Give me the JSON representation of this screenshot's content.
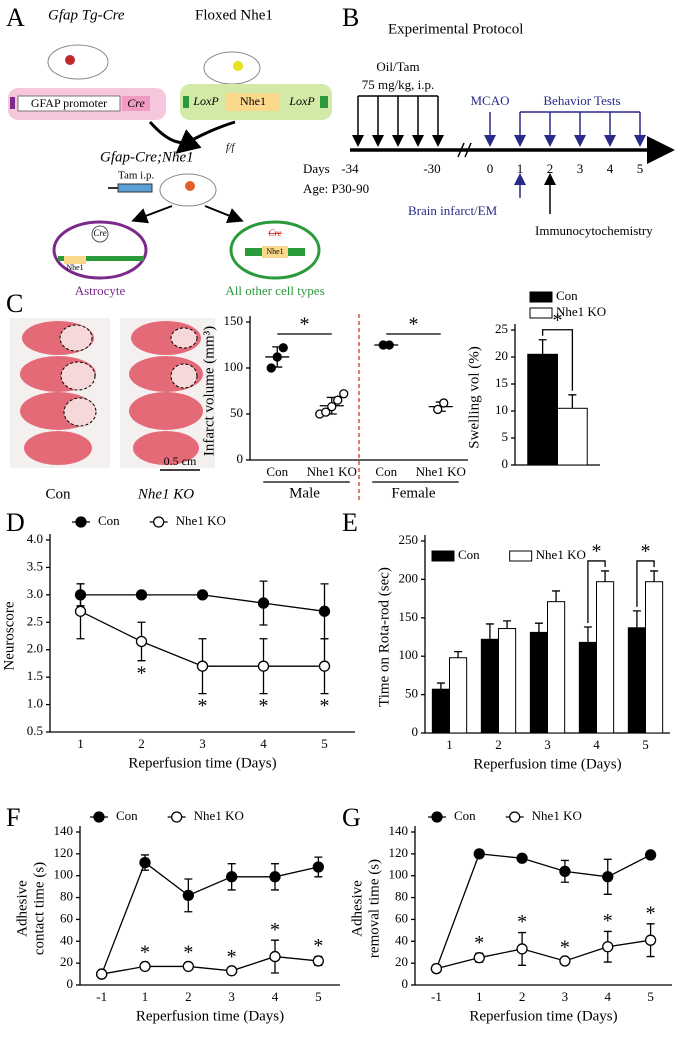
{
  "panel_labels": [
    "A",
    "B",
    "C",
    "D",
    "E",
    "F",
    "G"
  ],
  "diagram": {
    "mouse_left": "Gfap Tg-Cre",
    "mouse_right": "Floxed Nhe1",
    "gfap_promoter": "GFAP promoter",
    "cre": "Cre",
    "loxp_left": "LoxP",
    "nhe1": "Nhe1",
    "loxp_right": "LoxP",
    "cross": "Gfap-Cre;Nhe1",
    "cross_sup": "f/f",
    "tam": "Tam i.p.",
    "astro_cre": "Cre",
    "astro_nhe1": "Nhe1",
    "astrocyte": "Astrocyte",
    "other_cre": "Cre",
    "other_nhe1": "Nhe1",
    "other_cells": "All other cell types"
  },
  "protocol": {
    "title": "Experimental Protocol",
    "injection": "Oil/Tam",
    "dose": "75 mg/kg, i.p.",
    "mcao": "MCAO",
    "behavior": "Behavior Tests",
    "days_label": "Days",
    "days": [
      "-34",
      "-30",
      "0",
      "1",
      "2",
      "3",
      "4",
      "5"
    ],
    "age": "Age: P30-90",
    "infarct": "Brain infarct/EM",
    "icc": "Immunocytochemistry"
  },
  "brain_images": {
    "con": "Con",
    "ko": "Nhe1 KO",
    "scale": "0.5 cm"
  },
  "chart_data": [
    {
      "type": "dot_plot",
      "ylabel": "Infarct volume (mm³)",
      "ylim": [
        0,
        150
      ],
      "yticks": [
        0,
        50,
        100,
        150
      ],
      "groups": [
        {
          "name": "Male",
          "categories": [
            "Con",
            "Nhe1 KO"
          ],
          "colors": [
            "#000000",
            "#ffffff"
          ],
          "values": [
            [
              100,
              112,
              122
            ],
            [
              50,
              52,
              58,
              65,
              72
            ]
          ],
          "mean": [
            112,
            59
          ],
          "sd": [
            11,
            9
          ],
          "significance": "*"
        },
        {
          "name": "Female",
          "categories": [
            "Con",
            "Nhe1 KO"
          ],
          "colors": [
            "#000000",
            "#ffffff"
          ],
          "values": [
            [
              125,
              125
            ],
            [
              55,
              62
            ]
          ],
          "mean": [
            125,
            58
          ],
          "sd": [
            1,
            5
          ],
          "significance": "*"
        }
      ],
      "separator_color": "#d62020"
    },
    {
      "type": "bar",
      "ylabel": "Swelling vol (%)",
      "ylim": [
        0,
        25
      ],
      "yticks": [
        0,
        5,
        10,
        15,
        20,
        25
      ],
      "series": [
        {
          "name": "Con",
          "color": "#000000",
          "values": [
            20.5
          ],
          "errors": [
            2.7
          ]
        },
        {
          "name": "Nhe1 KO",
          "color": "#ffffff",
          "values": [
            10.5
          ],
          "errors": [
            2.5
          ]
        }
      ],
      "significance": "*",
      "legend": "top-left"
    },
    {
      "type": "line",
      "xlabel": "Reperfusion time (Days)",
      "ylabel": "Neuroscore",
      "categories": [
        "1",
        "2",
        "3",
        "4",
        "5"
      ],
      "ylim": [
        0.5,
        4
      ],
      "yticks": [
        0.5,
        {
          "value": 1,
          "label": "1.0"
        },
        1.5,
        {
          "value": 2,
          "label": "2.0"
        },
        2.5,
        {
          "value": 3,
          "label": "3.0"
        },
        3.5,
        {
          "value": 4,
          "label": "4.0"
        }
      ],
      "line_color": "#000000",
      "series": [
        {
          "name": "Con",
          "color": "#000000",
          "values": [
            3.0,
            3.0,
            3.0,
            2.85,
            2.7
          ],
          "errors": [
            0.2,
            0,
            0,
            0.4,
            0.5
          ]
        },
        {
          "name": "Nhe1 KO",
          "color": "#ffffff",
          "values": [
            2.7,
            2.15,
            1.7,
            1.7,
            1.7
          ],
          "errors": [
            0.5,
            0.35,
            0.5,
            0.5,
            0.5
          ]
        }
      ],
      "significance": [
        null,
        "*",
        "*",
        "*",
        "*"
      ],
      "legend": "top"
    },
    {
      "type": "bar",
      "xlabel": "Reperfusion time (Days)",
      "ylabel": "Time on Rota-rod (sec)",
      "categories": [
        "1",
        "2",
        "3",
        "4",
        "5"
      ],
      "ylim": [
        0,
        250
      ],
      "yticks": [
        0,
        50,
        100,
        150,
        200,
        250
      ],
      "series": [
        {
          "name": "Con",
          "color": "#000000",
          "values": [
            57,
            122,
            131,
            118,
            137
          ],
          "errors": [
            8,
            20,
            12,
            20,
            22
          ]
        },
        {
          "name": "Nhe1 KO",
          "color": "#ffffff",
          "values": [
            98,
            136,
            171,
            197,
            197
          ],
          "errors": [
            8,
            10,
            14,
            14,
            14
          ]
        }
      ],
      "significance": [
        null,
        null,
        null,
        "*",
        "*"
      ],
      "legend": "top-left"
    },
    {
      "type": "line",
      "xlabel": "Reperfusion time (Days)",
      "ylabel": [
        "Adhesive",
        "contact time (s)"
      ],
      "categories": [
        "-1",
        "1",
        "2",
        "3",
        "4",
        "5"
      ],
      "ylim": [
        0,
        140
      ],
      "yticks": [
        0,
        20,
        40,
        60,
        80,
        100,
        120,
        140
      ],
      "line_color": "#000000",
      "series": [
        {
          "name": "Con",
          "color": "#000000",
          "values": [
            10,
            112,
            82,
            99,
            99,
            108
          ],
          "errors": [
            0,
            7,
            15,
            12,
            12,
            9
          ]
        },
        {
          "name": "Nhe1 KO",
          "color": "#ffffff",
          "values": [
            10,
            17,
            17,
            13,
            26,
            22
          ],
          "errors": [
            0,
            3,
            3,
            3,
            15,
            4
          ]
        }
      ],
      "significance": [
        null,
        "*",
        "*",
        "*",
        "*",
        "*"
      ],
      "legend": "top"
    },
    {
      "type": "line",
      "xlabel": "Reperfusion time (Days)",
      "ylabel": [
        "Adhesive",
        "removal time (s)"
      ],
      "categories": [
        "-1",
        "1",
        "2",
        "3",
        "4",
        "5"
      ],
      "ylim": [
        0,
        140
      ],
      "yticks": [
        0,
        20,
        40,
        60,
        80,
        100,
        120,
        140
      ],
      "line_color": "#000000",
      "series": [
        {
          "name": "Con",
          "color": "#000000",
          "values": [
            15,
            120,
            116,
            104,
            99,
            119
          ],
          "errors": [
            0,
            2,
            3,
            10,
            16,
            3
          ]
        },
        {
          "name": "Nhe1 KO",
          "color": "#ffffff",
          "values": [
            15,
            25,
            33,
            22,
            35,
            41
          ],
          "errors": [
            0,
            4,
            15,
            3,
            14,
            15
          ]
        }
      ],
      "significance": [
        null,
        "*",
        "*",
        "*",
        "*",
        "*"
      ],
      "legend": "top"
    }
  ]
}
